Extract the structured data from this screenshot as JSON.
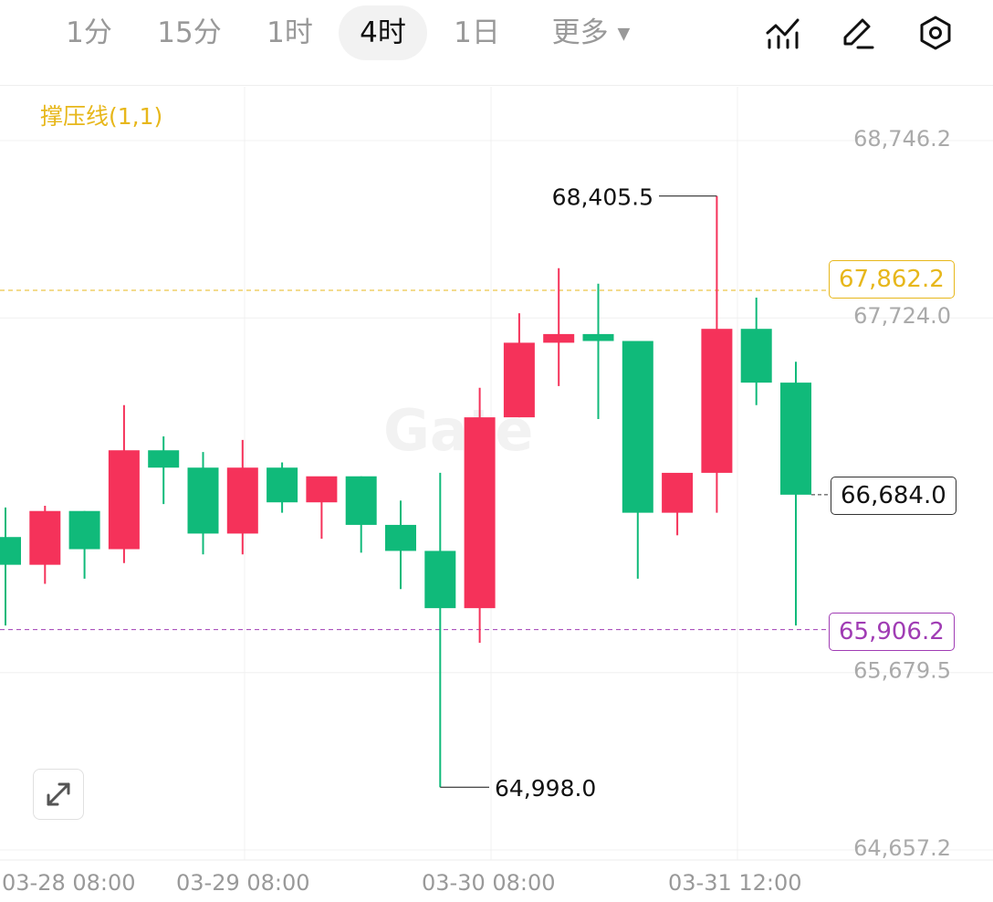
{
  "toolbar": {
    "tabs": [
      {
        "label": "1分",
        "active": false
      },
      {
        "label": "15分",
        "active": false
      },
      {
        "label": "1时",
        "active": false
      },
      {
        "label": "4时",
        "active": true
      },
      {
        "label": "1日",
        "active": false
      }
    ],
    "more_label": "更多",
    "icons": [
      "indicator-chart-icon",
      "pencil-draw-icon",
      "settings-hexagon-icon"
    ]
  },
  "colors": {
    "up": "#f5325a",
    "down": "#10ba7a",
    "support": "#a03cb4",
    "resistance": "#e7b71b"
  },
  "chart_data": {
    "type": "candlestick",
    "indicator": "撑压线(1,1)",
    "y_ticks": [
      "68,746.2",
      "67,724.0",
      "65,679.5",
      "64,657.2"
    ],
    "x_ticks": [
      "03-28 08:00",
      "03-29 08:00",
      "03-30 08:00",
      "03-31 12:00"
    ],
    "ylim": [
      64657.2,
      68746.2
    ],
    "last_price_label": "66,684.0",
    "resistance_label": "67,862.2",
    "support_label": "65,906.2",
    "high_label": "68,405.5",
    "low_label": "64,998.0",
    "watermark": "Gate",
    "candles": [
      {
        "o": 66440,
        "h": 66610,
        "l": 65930,
        "c": 66280
      },
      {
        "o": 66280,
        "h": 66620,
        "l": 66170,
        "c": 66590
      },
      {
        "o": 66590,
        "h": 66590,
        "l": 66200,
        "c": 66370
      },
      {
        "o": 66370,
        "h": 67200,
        "l": 66290,
        "c": 66940
      },
      {
        "o": 66940,
        "h": 67020,
        "l": 66630,
        "c": 66840
      },
      {
        "o": 66840,
        "h": 66930,
        "l": 66340,
        "c": 66460
      },
      {
        "o": 66460,
        "h": 67000,
        "l": 66340,
        "c": 66840
      },
      {
        "o": 66840,
        "h": 66870,
        "l": 66580,
        "c": 66640
      },
      {
        "o": 66640,
        "h": 66780,
        "l": 66430,
        "c": 66790
      },
      {
        "o": 66790,
        "h": 66790,
        "l": 66350,
        "c": 66510
      },
      {
        "o": 66510,
        "h": 66650,
        "l": 66140,
        "c": 66360
      },
      {
        "o": 66360,
        "h": 66810,
        "l": 64998,
        "c": 66030
      },
      {
        "o": 66030,
        "h": 67300,
        "l": 65830,
        "c": 67130
      },
      {
        "o": 67130,
        "h": 67730,
        "l": 67130,
        "c": 67560
      },
      {
        "o": 67560,
        "h": 67990,
        "l": 67310,
        "c": 67610
      },
      {
        "o": 67610,
        "h": 67900,
        "l": 67120,
        "c": 67570
      },
      {
        "o": 67570,
        "h": 67570,
        "l": 66200,
        "c": 66580
      },
      {
        "o": 66580,
        "h": 66770,
        "l": 66450,
        "c": 66810
      },
      {
        "o": 66810,
        "h": 68405.5,
        "l": 66580,
        "c": 67640
      },
      {
        "o": 67640,
        "h": 67820,
        "l": 67200,
        "c": 67330
      },
      {
        "o": 67330,
        "h": 67450,
        "l": 65930,
        "c": 66684
      }
    ]
  },
  "expand_button": "expand-icon"
}
